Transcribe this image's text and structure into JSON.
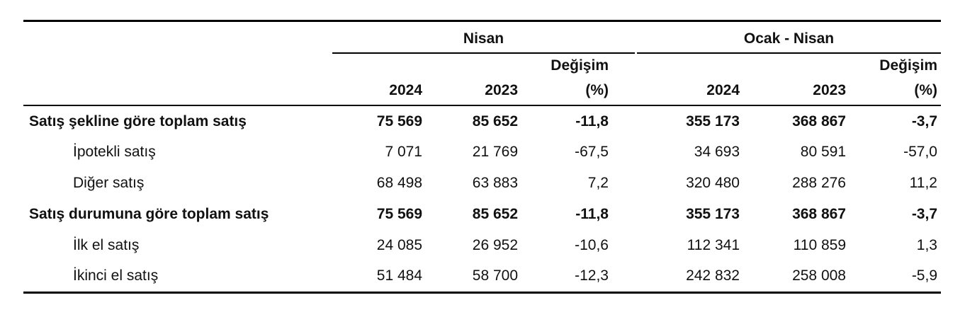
{
  "header": {
    "group_nisan": "Nisan",
    "group_ocak_nisan": "Ocak - Nisan",
    "col_2024": "2024",
    "col_2023": "2023",
    "col_change_line1": "Değişim",
    "col_change_line2": "(%)"
  },
  "rows": [
    {
      "label": "Satış şekline göre toplam satış",
      "nisan_2024": "75 569",
      "nisan_2023": "85 652",
      "nisan_change": "-11,8",
      "ocak_2024": "355 173",
      "ocak_2023": "368 867",
      "ocak_change": "-3,7"
    },
    {
      "label": "İpotekli satış",
      "nisan_2024": "7 071",
      "nisan_2023": "21 769",
      "nisan_change": "-67,5",
      "ocak_2024": "34 693",
      "ocak_2023": "80 591",
      "ocak_change": "-57,0"
    },
    {
      "label": "Diğer satış",
      "nisan_2024": "68 498",
      "nisan_2023": "63 883",
      "nisan_change": "7,2",
      "ocak_2024": "320 480",
      "ocak_2023": "288 276",
      "ocak_change": "11,2"
    },
    {
      "label": "Satış durumuna göre toplam satış",
      "nisan_2024": "75 569",
      "nisan_2023": "85 652",
      "nisan_change": "-11,8",
      "ocak_2024": "355 173",
      "ocak_2023": "368 867",
      "ocak_change": "-3,7"
    },
    {
      "label": "İlk el satış",
      "nisan_2024": "24 085",
      "nisan_2023": "26 952",
      "nisan_change": "-10,6",
      "ocak_2024": "112 341",
      "ocak_2023": "110 859",
      "ocak_change": "1,3"
    },
    {
      "label": "İkinci el satış",
      "nisan_2024": "51 484",
      "nisan_2023": "58 700",
      "nisan_change": "-12,3",
      "ocak_2024": "242 832",
      "ocak_2023": "258 008",
      "ocak_change": "-5,9"
    }
  ]
}
